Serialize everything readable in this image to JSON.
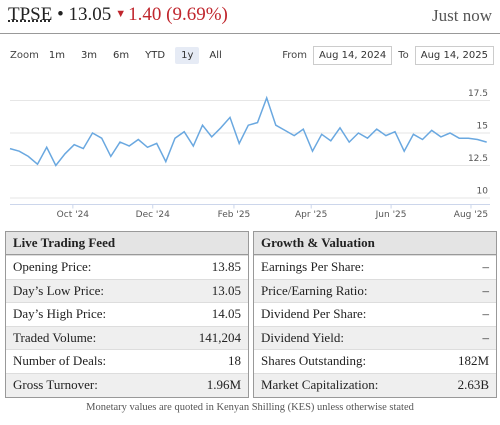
{
  "header": {
    "ticker": "TPSE",
    "price": "13.05",
    "change": "1.40 (9.69%)",
    "updated": "Just now"
  },
  "zoom": {
    "label": "Zoom",
    "buttons": [
      "1m",
      "3m",
      "6m",
      "YTD",
      "1y",
      "All"
    ],
    "selected": "1y"
  },
  "range": {
    "from_label": "From",
    "from": "Aug 14, 2024",
    "to_label": "To",
    "to": "Aug 14, 2025"
  },
  "chart_data": {
    "type": "line",
    "x": [
      "2024-08-14",
      "2024-08-21",
      "2024-08-28",
      "2024-09-04",
      "2024-09-11",
      "2024-09-18",
      "2024-09-25",
      "2024-10-02",
      "2024-10-09",
      "2024-10-16",
      "2024-10-23",
      "2024-10-30",
      "2024-11-06",
      "2024-11-13",
      "2024-11-20",
      "2024-11-27",
      "2024-12-04",
      "2024-12-11",
      "2024-12-18",
      "2024-12-25",
      "2025-01-01",
      "2025-01-08",
      "2025-01-15",
      "2025-01-22",
      "2025-01-29",
      "2025-02-05",
      "2025-02-12",
      "2025-02-19",
      "2025-02-26",
      "2025-03-05",
      "2025-03-12",
      "2025-03-19",
      "2025-03-26",
      "2025-04-02",
      "2025-04-09",
      "2025-04-16",
      "2025-04-23",
      "2025-04-30",
      "2025-05-07",
      "2025-05-14",
      "2025-05-21",
      "2025-05-28",
      "2025-06-04",
      "2025-06-11",
      "2025-06-18",
      "2025-06-25",
      "2025-07-02",
      "2025-07-09",
      "2025-07-16",
      "2025-07-23",
      "2025-07-30",
      "2025-08-06",
      "2025-08-13"
    ],
    "series": [
      {
        "name": "TPSE",
        "color": "#6aa8e0",
        "values": [
          13.8,
          13.6,
          13.2,
          12.6,
          13.9,
          12.5,
          13.4,
          14.1,
          13.8,
          15.0,
          14.6,
          13.2,
          14.3,
          14.0,
          14.5,
          13.9,
          14.2,
          12.8,
          14.6,
          15.1,
          14.0,
          15.6,
          14.7,
          15.4,
          16.2,
          14.2,
          15.6,
          15.8,
          17.7,
          15.6,
          15.2,
          14.8,
          15.3,
          13.6,
          14.9,
          14.4,
          15.4,
          14.3,
          15.0,
          14.6,
          15.3,
          14.8,
          15.1,
          13.6,
          14.9,
          14.5,
          15.2,
          14.7,
          15.0,
          14.6,
          14.6,
          14.5,
          14.3
        ]
      }
    ],
    "xlim": [
      "2024-08-14",
      "2025-08-14"
    ],
    "xticks": [
      {
        "value": "2024-10-01",
        "label": "Oct '24"
      },
      {
        "value": "2024-12-01",
        "label": "Dec '24"
      },
      {
        "value": "2025-02-01",
        "label": "Feb '25"
      },
      {
        "value": "2025-04-01",
        "label": "Apr '25"
      },
      {
        "value": "2025-06-01",
        "label": "Jun '25"
      },
      {
        "value": "2025-08-01",
        "label": "Aug '25"
      }
    ],
    "ylim": [
      9.5,
      19
    ],
    "yticks": [
      10,
      12.5,
      15,
      17.5
    ],
    "grid": true
  },
  "tables": [
    {
      "title": "Live Trading Feed",
      "rows": [
        [
          "Opening Price:",
          "13.85"
        ],
        [
          "Day’s Low Price:",
          "13.05"
        ],
        [
          "Day’s High Price:",
          "14.05"
        ],
        [
          "Traded Volume:",
          "141,204"
        ],
        [
          "Number of Deals:",
          "18"
        ],
        [
          "Gross Turnover:",
          "1.96M"
        ]
      ]
    },
    {
      "title": "Growth & Valuation",
      "rows": [
        [
          "Earnings Per Share:",
          "–"
        ],
        [
          "Price/Earning Ratio:",
          "–"
        ],
        [
          "Dividend Per Share:",
          "–"
        ],
        [
          "Dividend Yield:",
          "–"
        ],
        [
          "Shares Outstanding:",
          "182M"
        ],
        [
          "Market Capitalization:",
          "2.63B"
        ]
      ]
    }
  ],
  "footer": "Monetary values are quoted in Kenyan Shilling (KES) unless otherwise stated"
}
